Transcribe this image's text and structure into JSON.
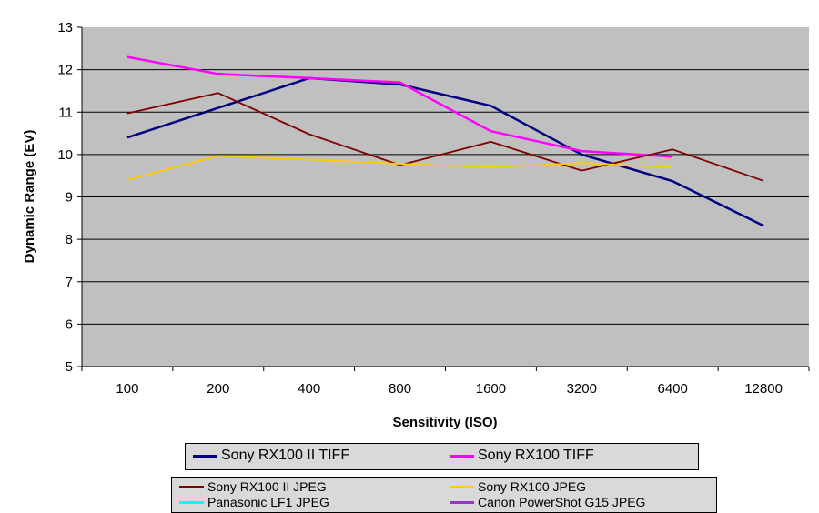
{
  "chart_data": {
    "type": "line",
    "title": "",
    "xlabel": "Sensitivity (ISO)",
    "ylabel": "Dynamic Range (EV)",
    "categories": [
      "100",
      "200",
      "400",
      "800",
      "1600",
      "3200",
      "6400",
      "12800"
    ],
    "ylim": [
      5,
      13
    ],
    "yticks": [
      "5",
      "6",
      "7",
      "8",
      "9",
      "10",
      "11",
      "12",
      "13"
    ],
    "grid": true,
    "legend": "bottom",
    "series": [
      {
        "name": "Sony RX100 II TIFF",
        "color": "#000080",
        "values": [
          10.4,
          11.1,
          11.8,
          11.65,
          11.15,
          10.0,
          9.37,
          8.32
        ]
      },
      {
        "name": "Sony RX100 TIFF",
        "color": "#ff00ff",
        "values": [
          12.3,
          11.9,
          11.8,
          11.7,
          10.55,
          10.08,
          9.95,
          null
        ]
      },
      {
        "name": "Sony RX100 II JPEG",
        "color": "#800000",
        "values": [
          10.97,
          11.45,
          10.48,
          9.75,
          10.3,
          9.62,
          10.12,
          9.38
        ]
      },
      {
        "name": "Sony RX100 JPEG",
        "color": "#ffcc00",
        "values": [
          9.4,
          9.97,
          9.88,
          9.78,
          9.7,
          9.8,
          9.7,
          null
        ]
      },
      {
        "name": "Panasonic LF1 JPEG",
        "color": "#00ffff",
        "values": [
          null,
          null,
          null,
          null,
          null,
          null,
          null,
          null
        ]
      },
      {
        "name": "Canon PowerShot G15 JPEG",
        "color": "#9933cc",
        "values": [
          null,
          null,
          null,
          null,
          null,
          null,
          null,
          null
        ]
      }
    ]
  }
}
